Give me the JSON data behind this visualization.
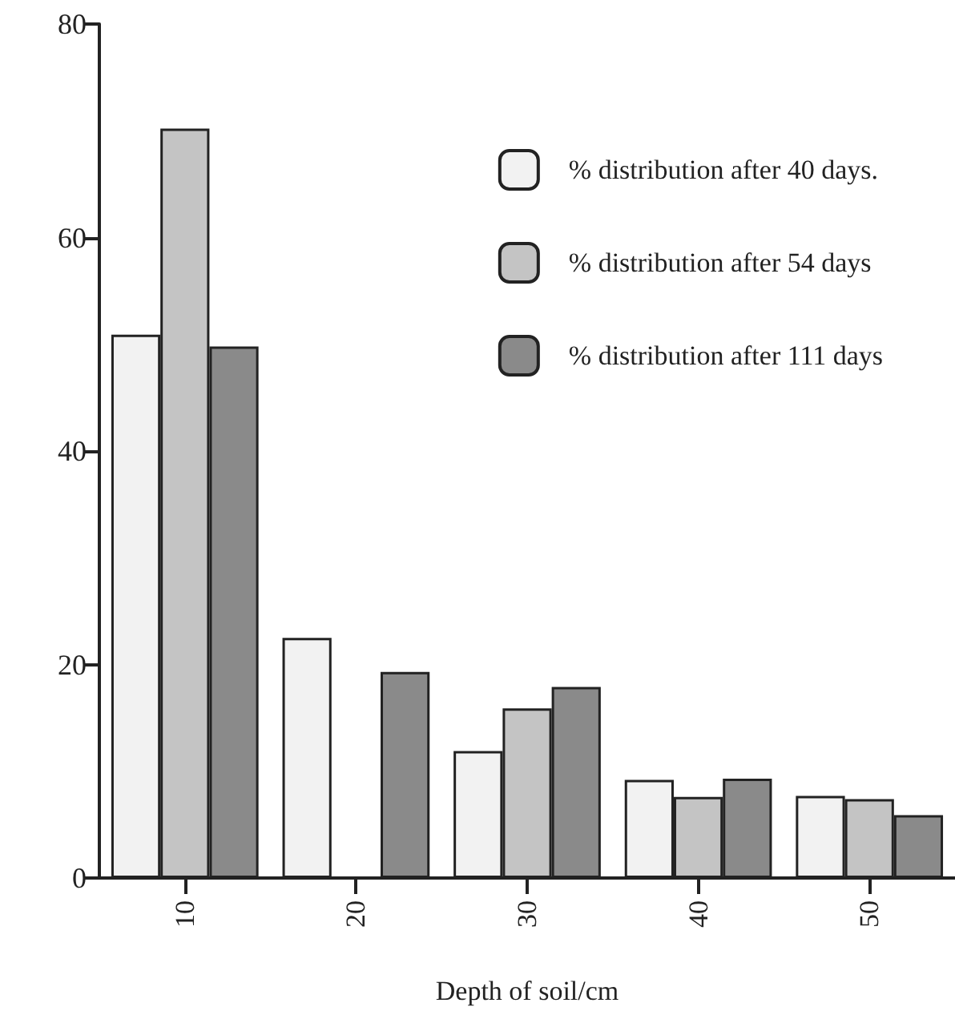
{
  "chart_data": {
    "type": "bar",
    "xlabel": "Depth of soil/cm",
    "categories": [
      "10",
      "20",
      "30",
      "40",
      "50"
    ],
    "series": [
      {
        "name": "% distribution after 40 days.",
        "color": "#f2f2f2",
        "values": [
          50.9,
          22.5,
          11.9,
          9.2,
          7.7
        ]
      },
      {
        "name": "% distribution after 54 days",
        "color": "#c4c4c4",
        "values": [
          70.2,
          null,
          15.9,
          7.6,
          7.4
        ]
      },
      {
        "name": "% distribution after 111 days",
        "color": "#8a8a8a",
        "values": [
          49.8,
          19.3,
          17.9,
          9.3,
          5.9
        ]
      }
    ],
    "ylim": [
      0,
      80
    ],
    "yticks": [
      0,
      20,
      40,
      60,
      80
    ],
    "grid": false,
    "legend": "top right"
  }
}
